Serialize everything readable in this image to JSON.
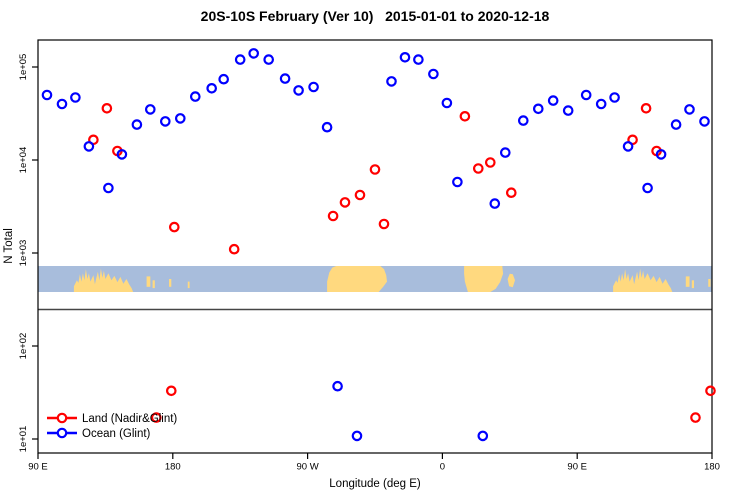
{
  "title": "20S-10S February (Ver 10)   2015-01-01 to 2020-12-18",
  "colors": {
    "land_series": "#ff0000",
    "ocean_series": "#0000ff",
    "map_ocean": "#a8bddc",
    "map_land": "#ffd97f",
    "axis": "#000000",
    "separator_line": "#454545",
    "background": "#ffffff"
  },
  "legend": {
    "items": [
      {
        "label": "Land (Nadir&Glint)",
        "color": "#ff0000"
      },
      {
        "label": "Ocean (Glint)",
        "color": "#0000ff"
      }
    ]
  },
  "chart_data": {
    "type": "scatter",
    "title": "20S-10S February (Ver 10)   2015-01-01 to 2020-12-18",
    "xlabel": "Longitude (deg E)",
    "ylabel": "N Total",
    "x_axis": {
      "note": "axis starts at 90E and wraps eastward 450 degrees; deg values below are offsets from 90E",
      "tick_deg": [
        0,
        90,
        180,
        270,
        360,
        450
      ],
      "tick_labels": [
        "90 E",
        "180",
        "90 W",
        "0",
        "90 E",
        "180"
      ],
      "range_deg": [
        0,
        450
      ]
    },
    "y_axis": {
      "scale": "log10",
      "tick_values": [
        10,
        100,
        1000,
        10000,
        100000
      ],
      "tick_labels": [
        "1e+01",
        "1e+02",
        "1e+03",
        "1e+04",
        "1e+05"
      ]
    },
    "series": [
      {
        "name": "Land (Nadir&Glint)",
        "color": "#ff0000",
        "marker": "open-circle",
        "points": [
          [
            37,
            16500
          ],
          [
            46,
            36000
          ],
          [
            53,
            12500
          ],
          [
            79,
            17
          ],
          [
            89,
            33
          ],
          [
            91,
            1900
          ],
          [
            131,
            1100
          ],
          [
            197,
            2500
          ],
          [
            205,
            3500
          ],
          [
            215,
            4200
          ],
          [
            225,
            7900
          ],
          [
            231,
            2050
          ],
          [
            285,
            29500
          ],
          [
            294,
            8100
          ],
          [
            302,
            9400
          ],
          [
            316,
            4450
          ],
          [
            397,
            16500
          ],
          [
            406,
            36000
          ],
          [
            413,
            12500
          ],
          [
            439,
            17
          ],
          [
            449,
            33
          ]
        ]
      },
      {
        "name": "Ocean (Glint)",
        "color": "#0000ff",
        "marker": "open-circle",
        "points": [
          [
            6,
            50000
          ],
          [
            16,
            40000
          ],
          [
            25,
            47000
          ],
          [
            34,
            14000
          ],
          [
            47,
            5000
          ],
          [
            56,
            11500
          ],
          [
            66,
            24000
          ],
          [
            75,
            35000
          ],
          [
            85,
            26000
          ],
          [
            95,
            28000
          ],
          [
            105,
            48000
          ],
          [
            116,
            59000
          ],
          [
            124,
            74000
          ],
          [
            135,
            120000
          ],
          [
            144,
            140000
          ],
          [
            154,
            120000
          ],
          [
            165,
            75000
          ],
          [
            174,
            56000
          ],
          [
            184,
            61000
          ],
          [
            193,
            22500
          ],
          [
            200,
            37
          ],
          [
            213,
            10.8
          ],
          [
            236,
            70000
          ],
          [
            245,
            127000
          ],
          [
            254,
            120000
          ],
          [
            264,
            84000
          ],
          [
            273,
            41000
          ],
          [
            280,
            5800
          ],
          [
            297,
            10.8
          ],
          [
            305,
            3400
          ],
          [
            312,
            12000
          ],
          [
            324,
            26500
          ],
          [
            334,
            35500
          ],
          [
            344,
            43500
          ],
          [
            354,
            34000
          ],
          [
            366,
            50000
          ],
          [
            376,
            40000
          ],
          [
            385,
            47000
          ],
          [
            394,
            14000
          ],
          [
            407,
            5000
          ],
          [
            416,
            11500
          ],
          [
            426,
            24000
          ],
          [
            435,
            35000
          ],
          [
            445,
            26000
          ]
        ]
      }
    ]
  },
  "map_strip": {
    "description": "geographic band 20S-10S drawn across plot, ocean blue with land in tan",
    "ocean_color": "#a8bddc",
    "land_color": "#ffd97f",
    "repeat_offset_deg": 360,
    "land_shapes": [
      {
        "name": "australia",
        "poly": [
          [
            24,
            1
          ],
          [
            24,
            0.78
          ],
          [
            26,
            0.55
          ],
          [
            27,
            0.65
          ],
          [
            28,
            0.32
          ],
          [
            29,
            0.6
          ],
          [
            30,
            0.28
          ],
          [
            31,
            0.55
          ],
          [
            32,
            0.12
          ],
          [
            33,
            0.5
          ],
          [
            34,
            0.28
          ],
          [
            35,
            0.6
          ],
          [
            37,
            0.35
          ],
          [
            38,
            0.7
          ],
          [
            39,
            0.45
          ],
          [
            40,
            0.22
          ],
          [
            41,
            0.55
          ],
          [
            42,
            0.1
          ],
          [
            43,
            0.45
          ],
          [
            44,
            0.18
          ],
          [
            45,
            0.5
          ],
          [
            47,
            0.28
          ],
          [
            49,
            0.55
          ],
          [
            51,
            0.38
          ],
          [
            53,
            0.62
          ],
          [
            55,
            0.42
          ],
          [
            57,
            0.68
          ],
          [
            59,
            0.5
          ],
          [
            61,
            0.72
          ],
          [
            62.5,
            0.85
          ],
          [
            63.5,
            1
          ]
        ]
      },
      {
        "name": "south-america",
        "poly": [
          [
            193,
            1
          ],
          [
            193,
            0.6
          ],
          [
            194.5,
            0.25
          ],
          [
            196.5,
            0.06
          ],
          [
            199,
            0
          ],
          [
            228.5,
            0
          ],
          [
            231,
            0.12
          ],
          [
            232.5,
            0.35
          ],
          [
            233,
            0.6
          ],
          [
            230.5,
            0.8
          ],
          [
            227.5,
            1
          ]
        ]
      },
      {
        "name": "africa",
        "poly": [
          [
            284.5,
            0
          ],
          [
            310,
            0
          ],
          [
            310.5,
            0.3
          ],
          [
            308.5,
            0.62
          ],
          [
            305.5,
            0.88
          ],
          [
            302,
            1
          ],
          [
            287,
            1
          ],
          [
            285,
            0.6
          ],
          [
            284.5,
            0.3
          ]
        ]
      },
      {
        "name": "madagascar",
        "poly": [
          [
            313.5,
            0.5
          ],
          [
            315,
            0.3
          ],
          [
            317,
            0.32
          ],
          [
            318.5,
            0.55
          ],
          [
            317,
            0.82
          ],
          [
            314.5,
            0.78
          ]
        ]
      }
    ],
    "island_specks": [
      [
        72.5,
        0.4,
        2.5,
        0.4
      ],
      [
        76.5,
        0.55,
        1.5,
        0.3
      ],
      [
        87.5,
        0.5,
        1.5,
        0.3
      ],
      [
        100,
        0.6,
        1.2,
        0.25
      ]
    ]
  }
}
